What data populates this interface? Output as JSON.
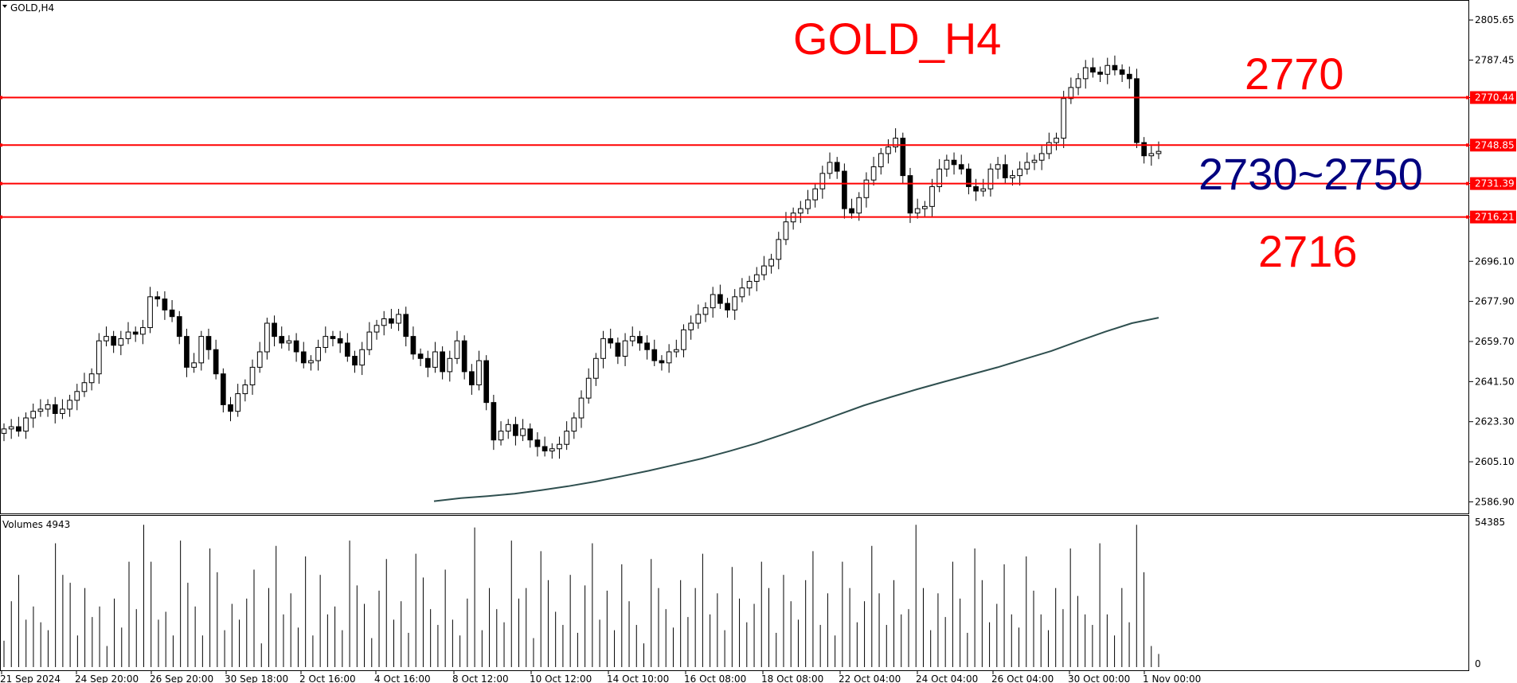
{
  "window": {
    "symbol_label": "GOLD,H4"
  },
  "colors": {
    "level_line": "#ff0000",
    "annotation_red": "#ff0000",
    "annotation_blue": "#00007f",
    "moving_average": "#2f4f4f",
    "candle": "#000000"
  },
  "annotations": {
    "title": "GOLD_H4",
    "level_upper": "2770",
    "zone": "2730~2750",
    "level_lower": "2716"
  },
  "volume_panel": {
    "label": "Volumes 4943",
    "axis_max_label": "54385",
    "axis_min_label": "0"
  },
  "chart_data": {
    "type": "candlestick",
    "y_ticks": [
      "2805.65",
      "2787.45",
      "2770.44",
      "2748.85",
      "2731.39",
      "2716.21",
      "2696.10",
      "2677.90",
      "2659.70",
      "2641.50",
      "2623.30",
      "2605.10",
      "2586.90"
    ],
    "x_ticks": [
      "21 Sep 2024",
      "24 Sep 20:00",
      "26 Sep 20:00",
      "30 Sep 18:00",
      "2 Oct 16:00",
      "4 Oct 16:00",
      "8 Oct 12:00",
      "10 Oct 12:00",
      "14 Oct 10:00",
      "16 Oct 08:00",
      "18 Oct 08:00",
      "22 Oct 04:00",
      "24 Oct 04:00",
      "26 Oct 04:00",
      "30 Oct 00:00",
      "1 Nov 00:00"
    ],
    "ylim": [
      2582,
      2814
    ],
    "levels": [
      2770.44,
      2748.85,
      2731.39,
      2716.21
    ],
    "closes": [
      2620,
      2621,
      2619,
      2625,
      2628,
      2629,
      2631,
      2627,
      2629,
      2633,
      2637,
      2641,
      2645,
      2660,
      2662,
      2658,
      2661,
      2664,
      2663,
      2666,
      2680,
      2679,
      2674,
      2671,
      2662,
      2648,
      2650,
      2662,
      2656,
      2645,
      2631,
      2628,
      2636,
      2640,
      2648,
      2655,
      2668,
      2662,
      2659,
      2660,
      2655,
      2650,
      2651,
      2657,
      2662,
      2661,
      2659,
      2653,
      2649,
      2656,
      2664,
      2667,
      2670,
      2668,
      2672,
      2662,
      2654,
      2652,
      2648,
      2655,
      2646,
      2652,
      2660,
      2646,
      2640,
      2651,
      2632,
      2615,
      2619,
      2622,
      2617,
      2620,
      2615,
      2612,
      2610,
      2611,
      2613,
      2619,
      2625,
      2634,
      2643,
      2652,
      2661,
      2659,
      2653,
      2660,
      2662,
      2659,
      2656,
      2651,
      2650,
      2655,
      2656,
      2665,
      2668,
      2672,
      2675,
      2681,
      2677,
      2674,
      2680,
      2684,
      2687,
      2690,
      2694,
      2697,
      2706,
      2714,
      2718,
      2720,
      2724,
      2729,
      2736,
      2741,
      2737,
      2720,
      2718,
      2725,
      2733,
      2739,
      2745,
      2748,
      2752,
      2735,
      2718,
      2720,
      2721,
      2730,
      2738,
      2742,
      2740,
      2738,
      2730,
      2728,
      2729,
      2738,
      2740,
      2734,
      2735,
      2738,
      2741,
      2742,
      2745,
      2750,
      2752,
      2770,
      2775,
      2779,
      2784,
      2782,
      2781,
      2785,
      2783,
      2781,
      2779,
      2750,
      2744,
      2745,
      2746
    ],
    "ma_values": [
      2587.2,
      2588.6,
      2589.5,
      2590.6,
      2592.2,
      2594.0,
      2596.1,
      2598.5,
      2601.0,
      2603.8,
      2606.6,
      2609.9,
      2613.4,
      2617.5,
      2621.7,
      2626.2,
      2630.6,
      2634.4,
      2638.0,
      2641.4,
      2644.7,
      2648.0,
      2651.7,
      2655.4,
      2659.8,
      2664.1,
      2668.0,
      2670.5
    ],
    "volumes": [
      10000,
      25000,
      35000,
      18000,
      23000,
      17000,
      14000,
      47000,
      35000,
      32000,
      12000,
      30000,
      19000,
      23000,
      8000,
      26000,
      15000,
      40000,
      22000,
      54000,
      40000,
      18000,
      21000,
      12000,
      48000,
      32000,
      23000,
      12000,
      45000,
      36000,
      14000,
      24000,
      18000,
      26000,
      37000,
      9000,
      30000,
      46000,
      20000,
      28000,
      15000,
      42000,
      12000,
      35000,
      20000,
      23000,
      14000,
      48000,
      31000,
      24000,
      11000,
      29000,
      41000,
      18000,
      25000,
      13000,
      43000,
      34000,
      22000,
      16000,
      37000,
      18000,
      12000,
      26000,
      53000,
      14000,
      30000,
      22000,
      17000,
      48000,
      26000,
      30000,
      11000,
      44000,
      33000,
      21000,
      16000,
      35000,
      13000,
      31000,
      47000,
      18000,
      29000,
      14000,
      39000,
      25000,
      16000,
      9000,
      41000,
      30000,
      22000,
      15000,
      33000,
      19000,
      30000,
      43000,
      20000,
      28000,
      14000,
      38000,
      26000,
      17000,
      24000,
      40000,
      30000,
      13000,
      35000,
      25000,
      18000,
      33000,
      44000,
      16000,
      28000,
      12000,
      40000,
      30000,
      17000,
      25000,
      46000,
      28000,
      16000,
      33000,
      20000,
      22000,
      54000,
      30000,
      14000,
      28000,
      19000,
      40000,
      26000,
      13000,
      45000,
      33000,
      17000,
      24000,
      39000,
      20000,
      15000,
      42000,
      29000,
      20000,
      14000,
      30000,
      22000,
      45000,
      27000,
      20000,
      16000,
      47000,
      20000,
      12000,
      30000,
      17000,
      54000,
      36000,
      8000,
      5000
    ]
  }
}
